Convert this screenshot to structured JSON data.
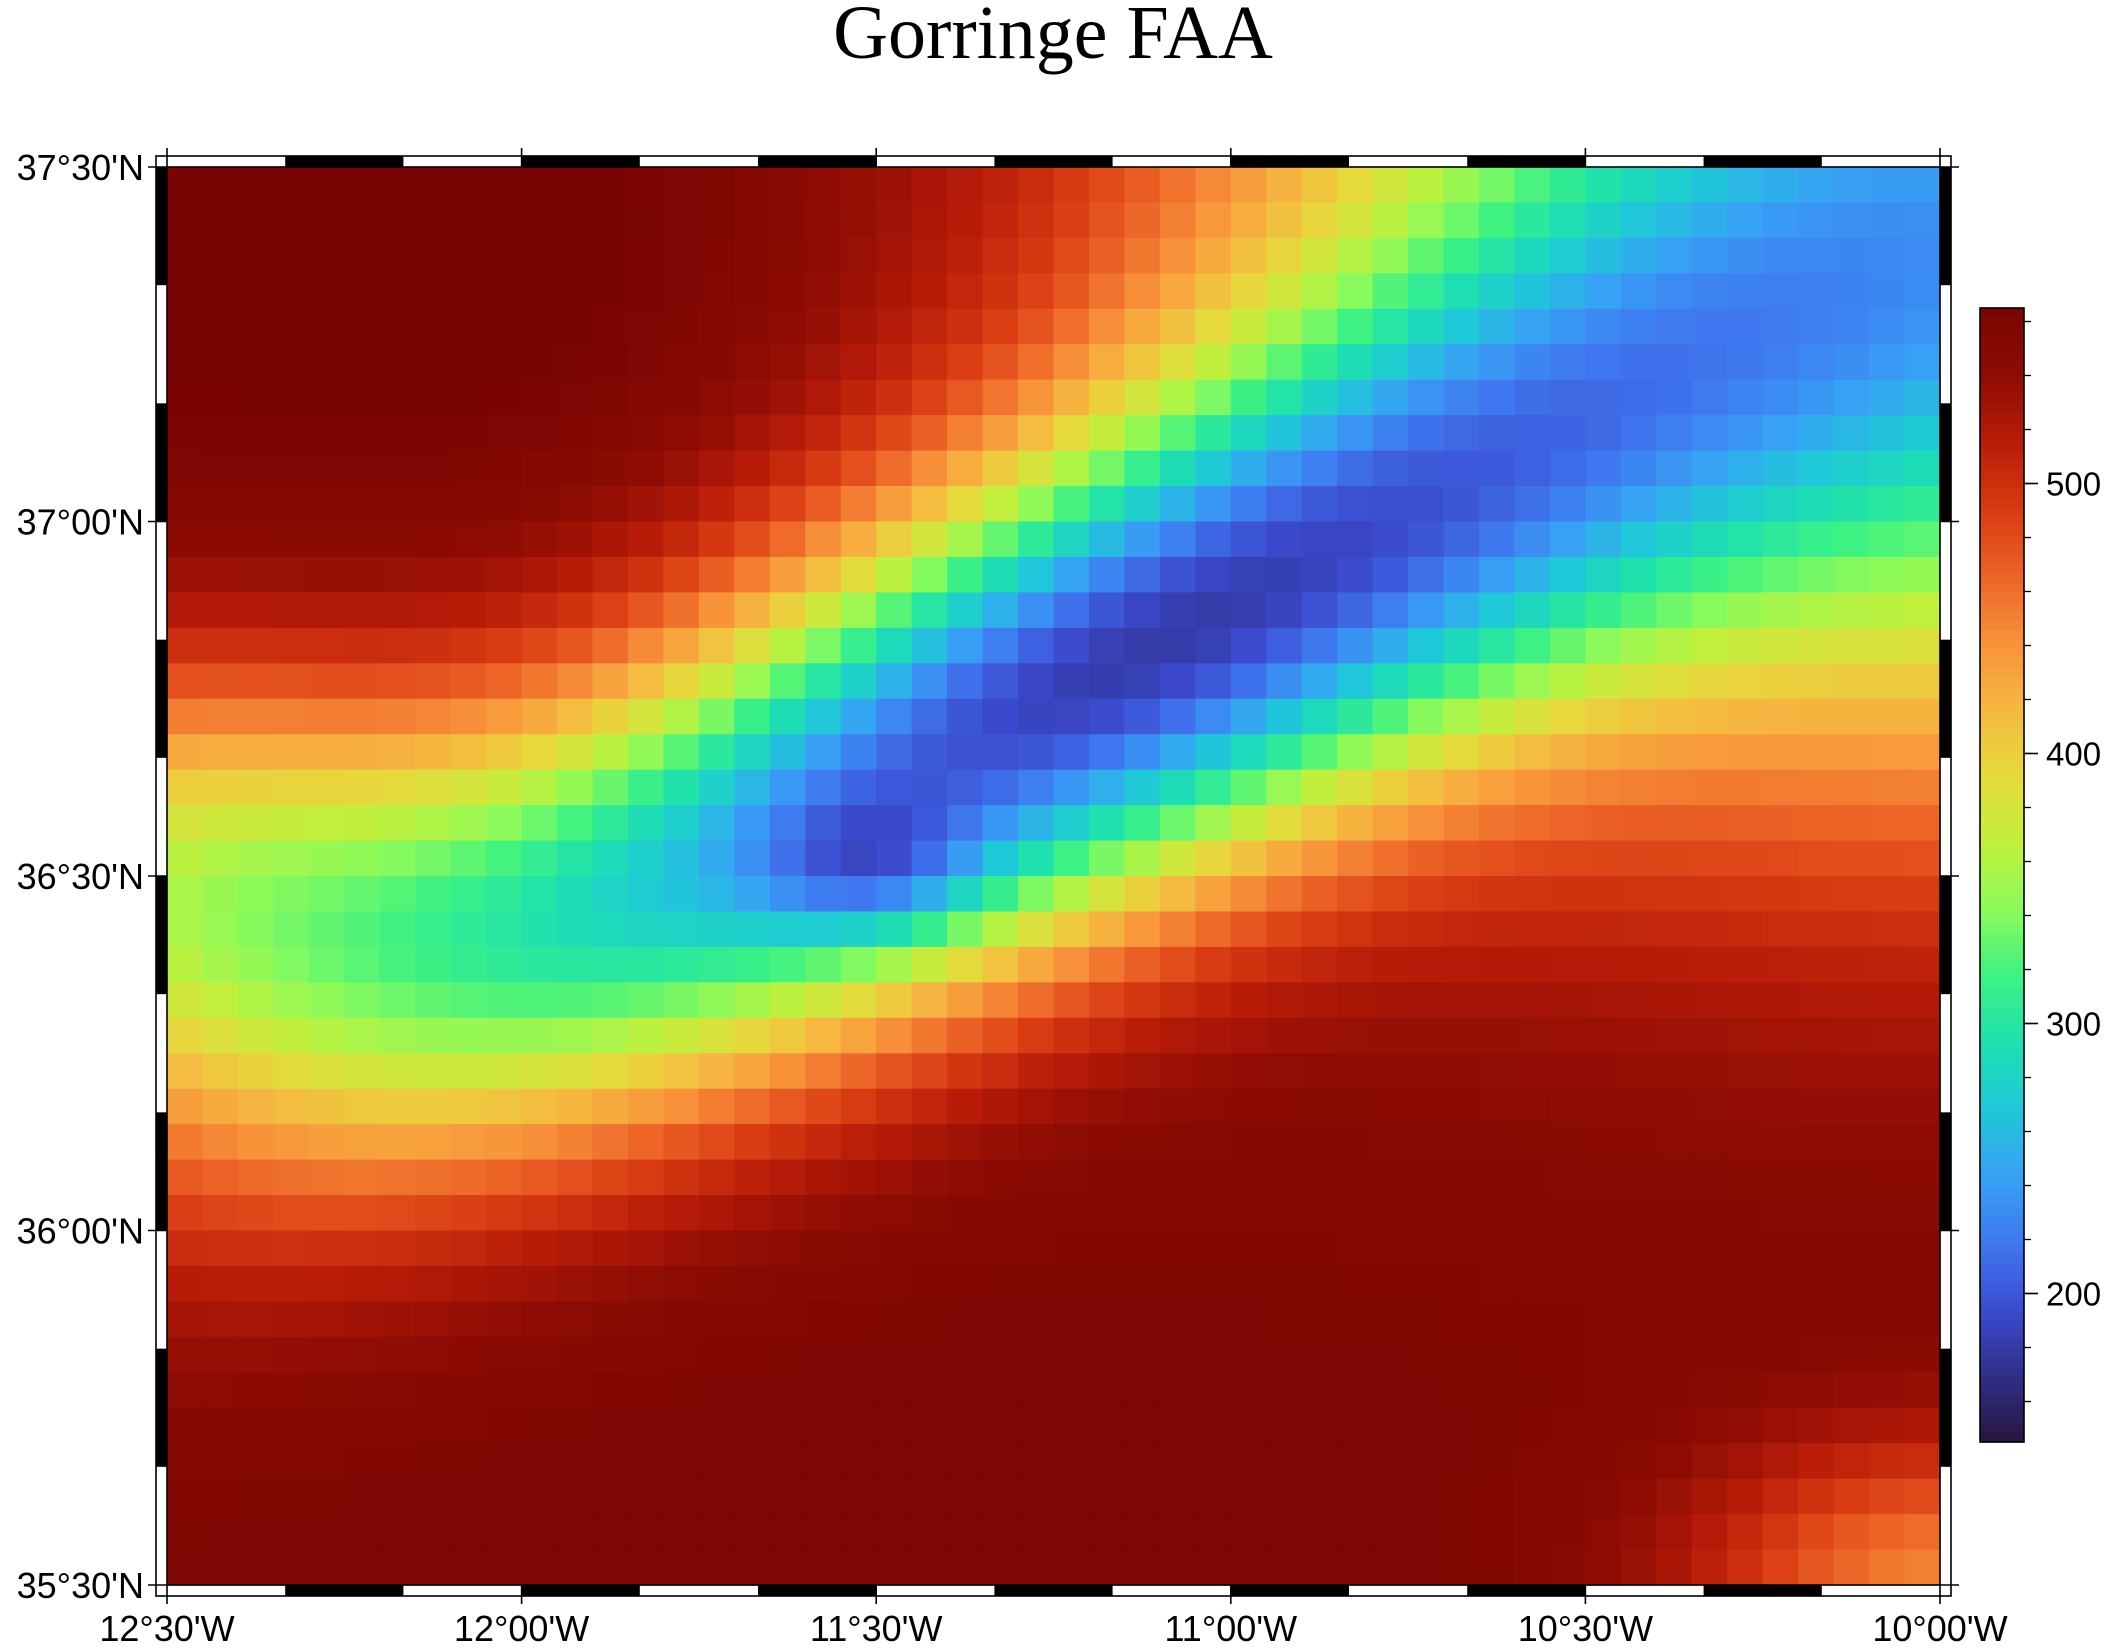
{
  "title": "Gorringe FAA",
  "map": {
    "lon_range": [
      -12.5,
      -10.0
    ],
    "lat_range": [
      35.5,
      37.5
    ],
    "lon_labels": [
      "12°30'W",
      "12°00'W",
      "11°30'W",
      "11°00'W",
      "10°30'W",
      "10°00'W"
    ],
    "lon_values": [
      -12.5,
      -12.0,
      -11.5,
      -11.0,
      -10.5,
      -10.0
    ],
    "lat_labels": [
      "37°30'N",
      "37°00'N",
      "36°30'N",
      "36°00'N",
      "35°30'N"
    ],
    "lat_values": [
      37.5,
      37.0,
      36.5,
      36.0,
      35.5
    ],
    "frame_segment_deg": 0.16666667,
    "grid_columns": 50,
    "grid_rows": 40
  },
  "colorbar": {
    "range": [
      145,
      565
    ],
    "tick_labels": [
      "500",
      "400",
      "300",
      "200"
    ],
    "tick_values": [
      500,
      400,
      300,
      200
    ],
    "colors": [
      "#2a1440",
      "#2f2f88",
      "#3b4bd0",
      "#3f78f0",
      "#37a2f5",
      "#1fc8d8",
      "#1ee0b0",
      "#3ef282",
      "#8cfa5a",
      "#c2f03c",
      "#e6d93c",
      "#f6b840",
      "#f8923a",
      "#ec6326",
      "#d83a12",
      "#b81c08",
      "#8e0c04",
      "#7a0403"
    ]
  },
  "chart_data": {
    "type": "heatmap",
    "title": "Gorringe FAA",
    "x_range": [
      -12.5,
      -10.0
    ],
    "y_range": [
      35.5,
      37.5
    ],
    "value_range": [
      145,
      565
    ],
    "features": [
      {
        "kind": "ridge_minimum",
        "lon": -11.5,
        "lat": 36.5,
        "value": 150
      },
      {
        "kind": "ridge_axis_trend",
        "from": [
          -11.9,
          36.45
        ],
        "to": [
          -10.7,
          36.95
        ],
        "value": 200
      },
      {
        "kind": "high",
        "lon": -11.9,
        "lat": 37.4,
        "value": 560
      },
      {
        "kind": "high",
        "lon": -10.9,
        "lat": 35.8,
        "value": 520
      }
    ]
  }
}
